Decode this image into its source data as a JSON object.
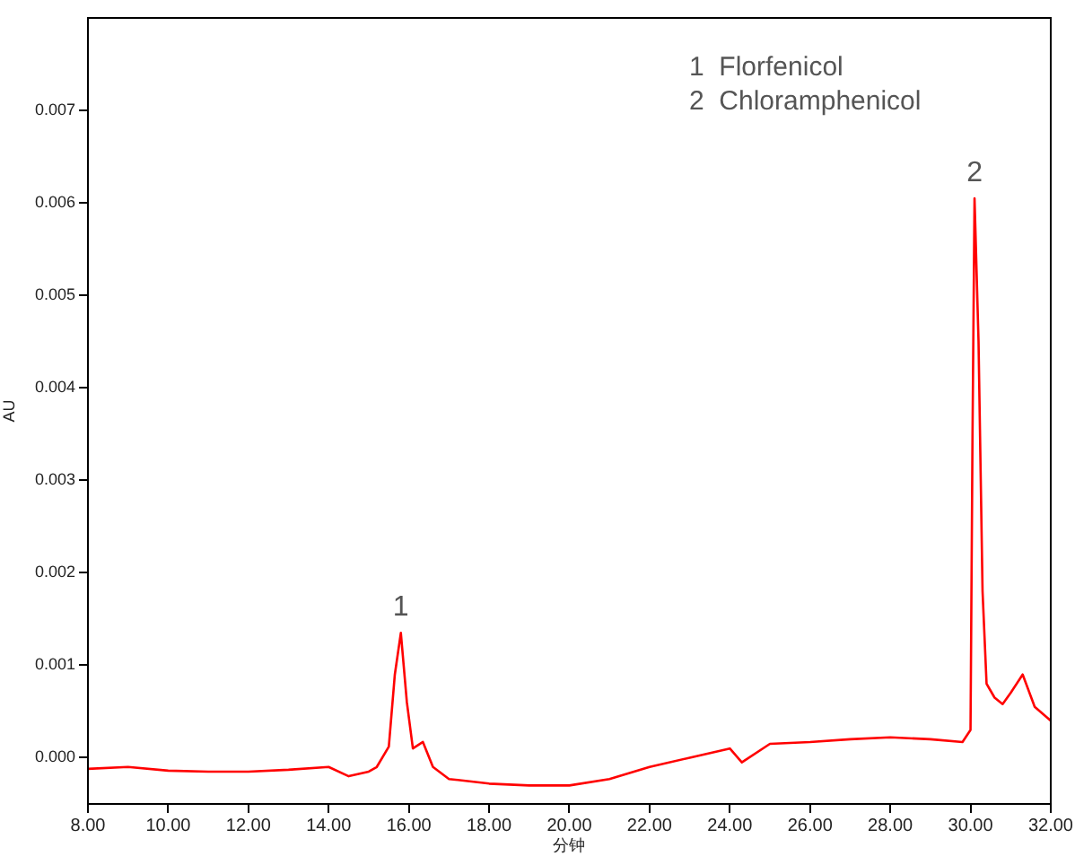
{
  "chart_data": {
    "type": "line",
    "xlabel": "分钟",
    "ylabel": "AU",
    "x": [
      8,
      9,
      10,
      11,
      12,
      13,
      14,
      14.5,
      15,
      15.2,
      15.5,
      15.65,
      15.8,
      15.95,
      16.1,
      16.35,
      16.6,
      17,
      18,
      19,
      20,
      21,
      22,
      23,
      24,
      24.3,
      25,
      26,
      27,
      28,
      29,
      29.8,
      30.0,
      30.05,
      30.1,
      30.2,
      30.3,
      30.4,
      30.6,
      30.8,
      31.0,
      31.3,
      31.6,
      32
    ],
    "series": [
      {
        "color": "#ff0000",
        "values": [
          -0.00012,
          -0.0001,
          -0.00014,
          -0.00015,
          -0.00015,
          -0.00013,
          -0.0001,
          -0.0002,
          -0.00015,
          -0.0001,
          0.00012,
          0.0009,
          0.00135,
          0.0006,
          0.0001,
          0.00017,
          -0.0001,
          -0.00023,
          -0.00028,
          -0.0003,
          -0.0003,
          -0.00023,
          -0.0001,
          0,
          0.0001,
          -5e-05,
          0.00015,
          0.00017,
          0.0002,
          0.00022,
          0.0002,
          0.00017,
          0.0003,
          0.0035,
          0.00605,
          0.0045,
          0.0018,
          0.0008,
          0.00065,
          0.00058,
          0.0007,
          0.0009,
          0.00055,
          0.0004
        ]
      }
    ],
    "xlim": [
      8,
      32
    ],
    "ylim": [
      -0.0005,
      0.008
    ],
    "xticks": [
      {
        "value": 8,
        "label": "8.00"
      },
      {
        "value": 10,
        "label": "10.00"
      },
      {
        "value": 12,
        "label": "12.00"
      },
      {
        "value": 14,
        "label": "14.00"
      },
      {
        "value": 16,
        "label": "16.00"
      },
      {
        "value": 18,
        "label": "18.00"
      },
      {
        "value": 20,
        "label": "20.00"
      },
      {
        "value": 22,
        "label": "22.00"
      },
      {
        "value": 24,
        "label": "24.00"
      },
      {
        "value": 26,
        "label": "26.00"
      },
      {
        "value": 28,
        "label": "28.00"
      },
      {
        "value": 30,
        "label": "30.00"
      },
      {
        "value": 32,
        "label": "32.00"
      }
    ],
    "yticks": [
      {
        "value": 0,
        "label": "0.000"
      },
      {
        "value": 0.001,
        "label": "0.001"
      },
      {
        "value": 0.002,
        "label": "0.002"
      },
      {
        "value": 0.003,
        "label": "0.003"
      },
      {
        "value": 0.004,
        "label": "0.004"
      },
      {
        "value": 0.005,
        "label": "0.005"
      },
      {
        "value": 0.006,
        "label": "0.006"
      },
      {
        "value": 0.007,
        "label": "0.007"
      }
    ],
    "annotations": [
      {
        "text": "1",
        "x": 15.8,
        "y": 0.00135
      },
      {
        "text": "2",
        "x": 30.1,
        "y": 0.00605
      },
      "1  Florfenicol",
      "2  Chloramphenicol"
    ],
    "grid": false,
    "legend": false,
    "marker": "none",
    "line_style": "solid"
  }
}
